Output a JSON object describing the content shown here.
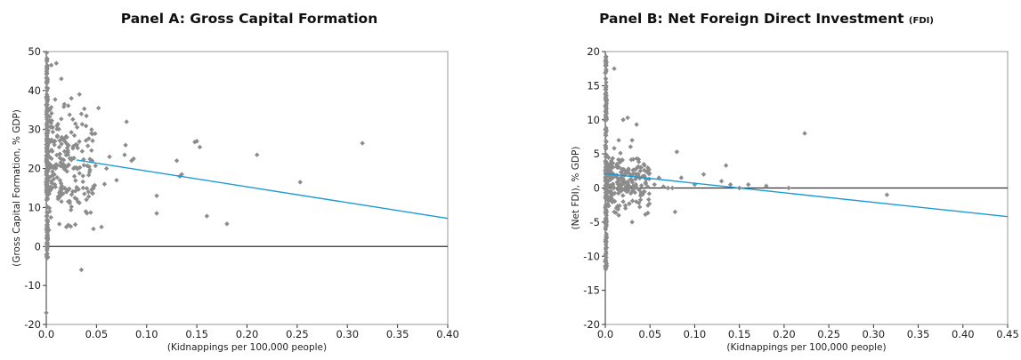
{
  "chart_data": [
    {
      "type": "scatter",
      "title": "Panel A: Gross Capital Formation",
      "xlabel": "(Kidnappings per 100,000 people)",
      "ylabel": "(Gross Capital Formation, % GDP)",
      "xlim": [
        0,
        0.4
      ],
      "ylim": [
        -20,
        50
      ],
      "xticks": [
        "0.0",
        "0.05",
        "0.10",
        "0.15",
        "0.20",
        "0.25",
        "0.30",
        "0.35",
        "0.40"
      ],
      "yticks": [
        "-20",
        "-10",
        "0",
        "10",
        "20",
        "30",
        "40",
        "50"
      ],
      "point_color": "#8c8c8c",
      "trend_color": "#1a9bd7",
      "trendline": {
        "x": [
          0.03,
          0.4
        ],
        "y": [
          22.2,
          7.2
        ]
      },
      "cluster": {
        "x_max": 0.05,
        "y_center": 21,
        "y_spread": 7,
        "count": 230
      },
      "axis_strip": {
        "y_min": -3,
        "y_max": 50,
        "count": 180
      },
      "points": [
        [
          0.0,
          -17
        ],
        [
          0.035,
          -6
        ],
        [
          0.047,
          4.5
        ],
        [
          0.055,
          5
        ],
        [
          0.02,
          5
        ],
        [
          0.022,
          5.5
        ],
        [
          0.11,
          8.5
        ],
        [
          0.16,
          7.8
        ],
        [
          0.18,
          5.8
        ],
        [
          0.133,
          18
        ],
        [
          0.135,
          18.5
        ],
        [
          0.13,
          22
        ],
        [
          0.15,
          27
        ],
        [
          0.148,
          26.8
        ],
        [
          0.153,
          25.5
        ],
        [
          0.21,
          23.5
        ],
        [
          0.253,
          16.5
        ],
        [
          0.315,
          26.5
        ],
        [
          0.11,
          13
        ],
        [
          0.08,
          32
        ],
        [
          0.085,
          22
        ],
        [
          0.087,
          22.5
        ],
        [
          0.078,
          23.5
        ],
        [
          0.079,
          26
        ],
        [
          0.07,
          17
        ],
        [
          0.058,
          16
        ],
        [
          0.06,
          20
        ],
        [
          0.063,
          23
        ],
        [
          0.052,
          35.5
        ],
        [
          0.045,
          29
        ],
        [
          0.04,
          33.5
        ],
        [
          0.035,
          34
        ],
        [
          0.025,
          38
        ],
        [
          0.018,
          36.5
        ],
        [
          0.015,
          43
        ],
        [
          0.01,
          47
        ],
        [
          0.005,
          46.5
        ],
        [
          0.03,
          26
        ],
        [
          0.028,
          18
        ],
        [
          0.04,
          12
        ],
        [
          0.042,
          14
        ],
        [
          0.038,
          13.5
        ]
      ]
    },
    {
      "type": "scatter",
      "title": "Panel B: Net Foreign Direct Investment",
      "title_suffix": "(FDI)",
      "xlabel": "(Kidnappings per 100,000 people)",
      "ylabel": "(Net FDI), % GDP)",
      "xlim": [
        0,
        0.45
      ],
      "ylim": [
        -20,
        20
      ],
      "xticks": [
        "0.0",
        "0.05",
        "0.10",
        "0.15",
        "0.20",
        "0.25",
        "0.30",
        "0.35",
        "0.40",
        "0.45"
      ],
      "yticks": [
        "-20",
        "-15",
        "-10",
        "-5",
        "0",
        "5",
        "10",
        "15",
        "20"
      ],
      "point_color": "#8c8c8c",
      "trend_color": "#1a9bd7",
      "trendline": {
        "x": [
          0.0,
          0.45
        ],
        "y": [
          2.1,
          -4.2
        ]
      },
      "cluster": {
        "x_max": 0.05,
        "y_center": 1,
        "y_spread": 2,
        "count": 230
      },
      "axis_strip": {
        "y_min": -12,
        "y_max": 19.5,
        "count": 180
      },
      "points": [
        [
          0.315,
          -1
        ],
        [
          0.223,
          8
        ],
        [
          0.205,
          0
        ],
        [
          0.18,
          0.3
        ],
        [
          0.16,
          0.5
        ],
        [
          0.15,
          0
        ],
        [
          0.14,
          0.5
        ],
        [
          0.135,
          3.3
        ],
        [
          0.13,
          1
        ],
        [
          0.11,
          2
        ],
        [
          0.1,
          0.5
        ],
        [
          0.085,
          1.5
        ],
        [
          0.08,
          5.3
        ],
        [
          0.078,
          -3.5
        ],
        [
          0.075,
          0
        ],
        [
          0.07,
          0
        ],
        [
          0.065,
          0.2
        ],
        [
          0.06,
          1.5
        ],
        [
          0.055,
          0.5
        ],
        [
          0.035,
          9.3
        ],
        [
          0.025,
          10.3
        ],
        [
          0.02,
          10
        ],
        [
          0.015,
          7
        ],
        [
          0.03,
          7
        ],
        [
          0.01,
          17.5
        ],
        [
          0.03,
          -5
        ],
        [
          0.02,
          -2
        ],
        [
          0.015,
          -4
        ],
        [
          0.01,
          -3.5
        ],
        [
          0.04,
          3
        ],
        [
          0.045,
          0.8
        ]
      ]
    }
  ]
}
